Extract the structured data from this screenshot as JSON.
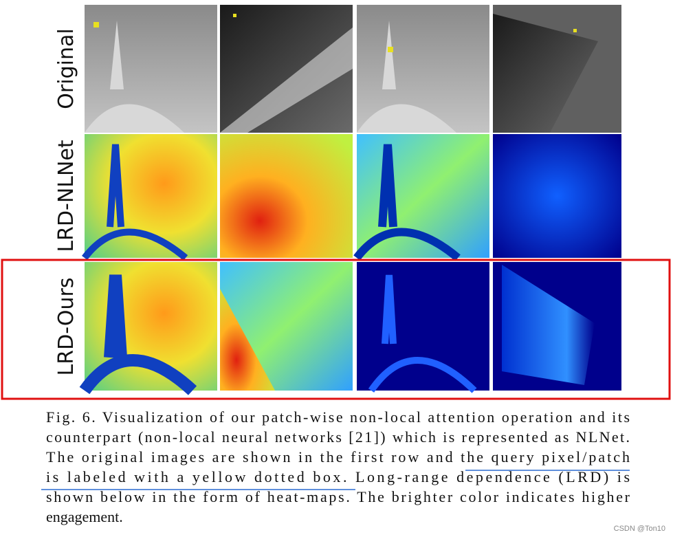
{
  "figure": {
    "row_labels": [
      "Original",
      "LRD-NLNet",
      "LRD-Ours"
    ],
    "caption_lines": [
      "Fig. 6.  Visualization of our patch-wise non-local attention operation and its",
      "counterpart (non-local neural networks [21]) which is represented as NLNet.",
      "The original images are shown in the first row and the query pixel/patch",
      "is labeled with a yellow dotted box. Long-range dependence (LRD) is",
      "shown below in the form of heat-maps. The brighter color indicates higher",
      "engagement."
    ]
  },
  "watermark": "CSDN @Ton10"
}
